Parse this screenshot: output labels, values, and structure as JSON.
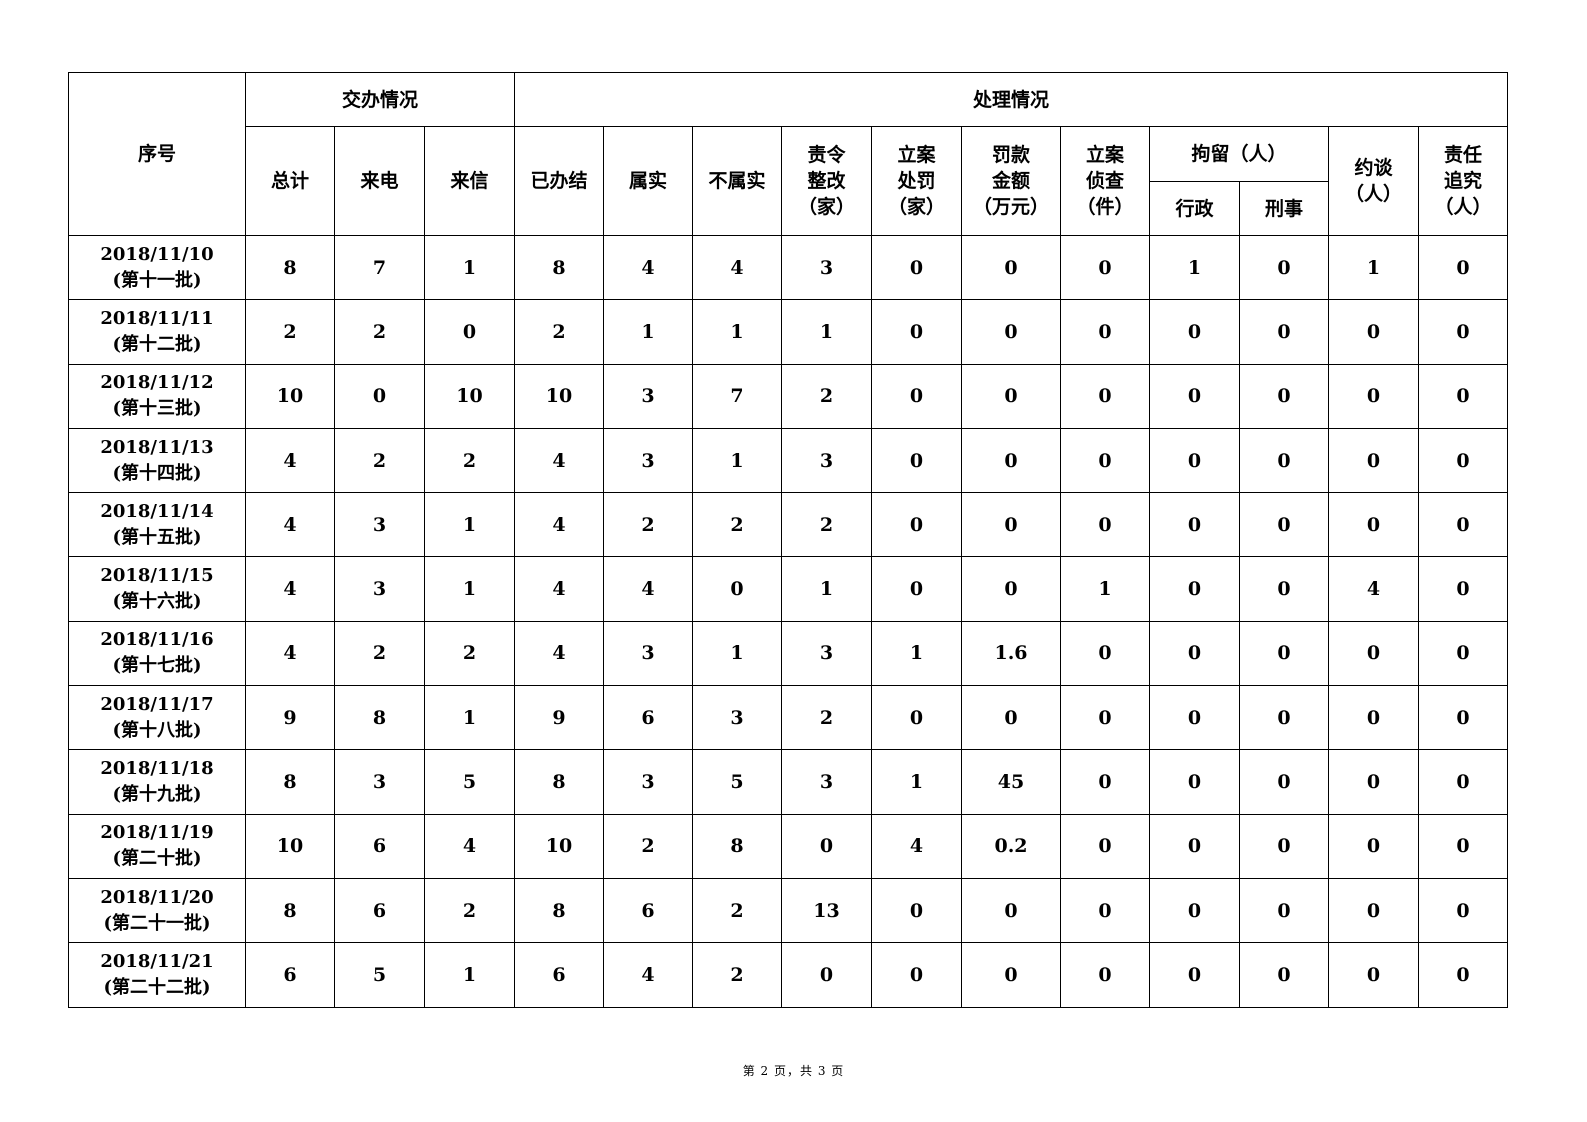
{
  "header": {
    "seq": "序号",
    "group_assigned": "交办情况",
    "group_handled": "处理情况",
    "assigned_cols": [
      "总计",
      "来电",
      "来信"
    ],
    "handled_cols": [
      "已办结",
      "属实",
      "不属实",
      "责令\n整改\n（家）",
      "立案\n处罚\n（家）",
      "罚款\n金额\n（万元）",
      "立案\n侦查\n（件）"
    ],
    "detention": "拘留（人）",
    "detention_cols": [
      "行政",
      "刑事"
    ],
    "talk": "约谈\n（人）",
    "accountability": "责任\n追究\n（人）"
  },
  "rows": [
    {
      "date": "2018/11/10",
      "batch": "(第十一批)",
      "values": [
        "8",
        "7",
        "1",
        "8",
        "4",
        "4",
        "3",
        "0",
        "0",
        "0",
        "1",
        "0",
        "1",
        "0"
      ]
    },
    {
      "date": "2018/11/11",
      "batch": "(第十二批)",
      "values": [
        "2",
        "2",
        "0",
        "2",
        "1",
        "1",
        "1",
        "0",
        "0",
        "0",
        "0",
        "0",
        "0",
        "0"
      ]
    },
    {
      "date": "2018/11/12",
      "batch": "(第十三批)",
      "values": [
        "10",
        "0",
        "10",
        "10",
        "3",
        "7",
        "2",
        "0",
        "0",
        "0",
        "0",
        "0",
        "0",
        "0"
      ]
    },
    {
      "date": "2018/11/13",
      "batch": "(第十四批)",
      "values": [
        "4",
        "2",
        "2",
        "4",
        "3",
        "1",
        "3",
        "0",
        "0",
        "0",
        "0",
        "0",
        "0",
        "0"
      ]
    },
    {
      "date": "2018/11/14",
      "batch": "(第十五批)",
      "values": [
        "4",
        "3",
        "1",
        "4",
        "2",
        "2",
        "2",
        "0",
        "0",
        "0",
        "0",
        "0",
        "0",
        "0"
      ]
    },
    {
      "date": "2018/11/15",
      "batch": "(第十六批)",
      "values": [
        "4",
        "3",
        "1",
        "4",
        "4",
        "0",
        "1",
        "0",
        "0",
        "1",
        "0",
        "0",
        "4",
        "0"
      ]
    },
    {
      "date": "2018/11/16",
      "batch": "(第十七批)",
      "values": [
        "4",
        "2",
        "2",
        "4",
        "3",
        "1",
        "3",
        "1",
        "1.6",
        "0",
        "0",
        "0",
        "0",
        "0"
      ]
    },
    {
      "date": "2018/11/17",
      "batch": "(第十八批)",
      "values": [
        "9",
        "8",
        "1",
        "9",
        "6",
        "3",
        "2",
        "0",
        "0",
        "0",
        "0",
        "0",
        "0",
        "0"
      ]
    },
    {
      "date": "2018/11/18",
      "batch": "(第十九批)",
      "values": [
        "8",
        "3",
        "5",
        "8",
        "3",
        "5",
        "3",
        "1",
        "45",
        "0",
        "0",
        "0",
        "0",
        "0"
      ]
    },
    {
      "date": "2018/11/19",
      "batch": "(第二十批)",
      "values": [
        "10",
        "6",
        "4",
        "10",
        "2",
        "8",
        "0",
        "4",
        "0.2",
        "0",
        "0",
        "0",
        "0",
        "0"
      ]
    },
    {
      "date": "2018/11/20",
      "batch": "(第二十一批)",
      "values": [
        "8",
        "6",
        "2",
        "8",
        "6",
        "2",
        "13",
        "0",
        "0",
        "0",
        "0",
        "0",
        "0",
        "0"
      ]
    },
    {
      "date": "2018/11/21",
      "batch": "(第二十二批)",
      "values": [
        "6",
        "5",
        "1",
        "6",
        "4",
        "2",
        "0",
        "0",
        "0",
        "0",
        "0",
        "0",
        "0",
        "0"
      ]
    }
  ],
  "footer": "第 2 页，共 3 页"
}
